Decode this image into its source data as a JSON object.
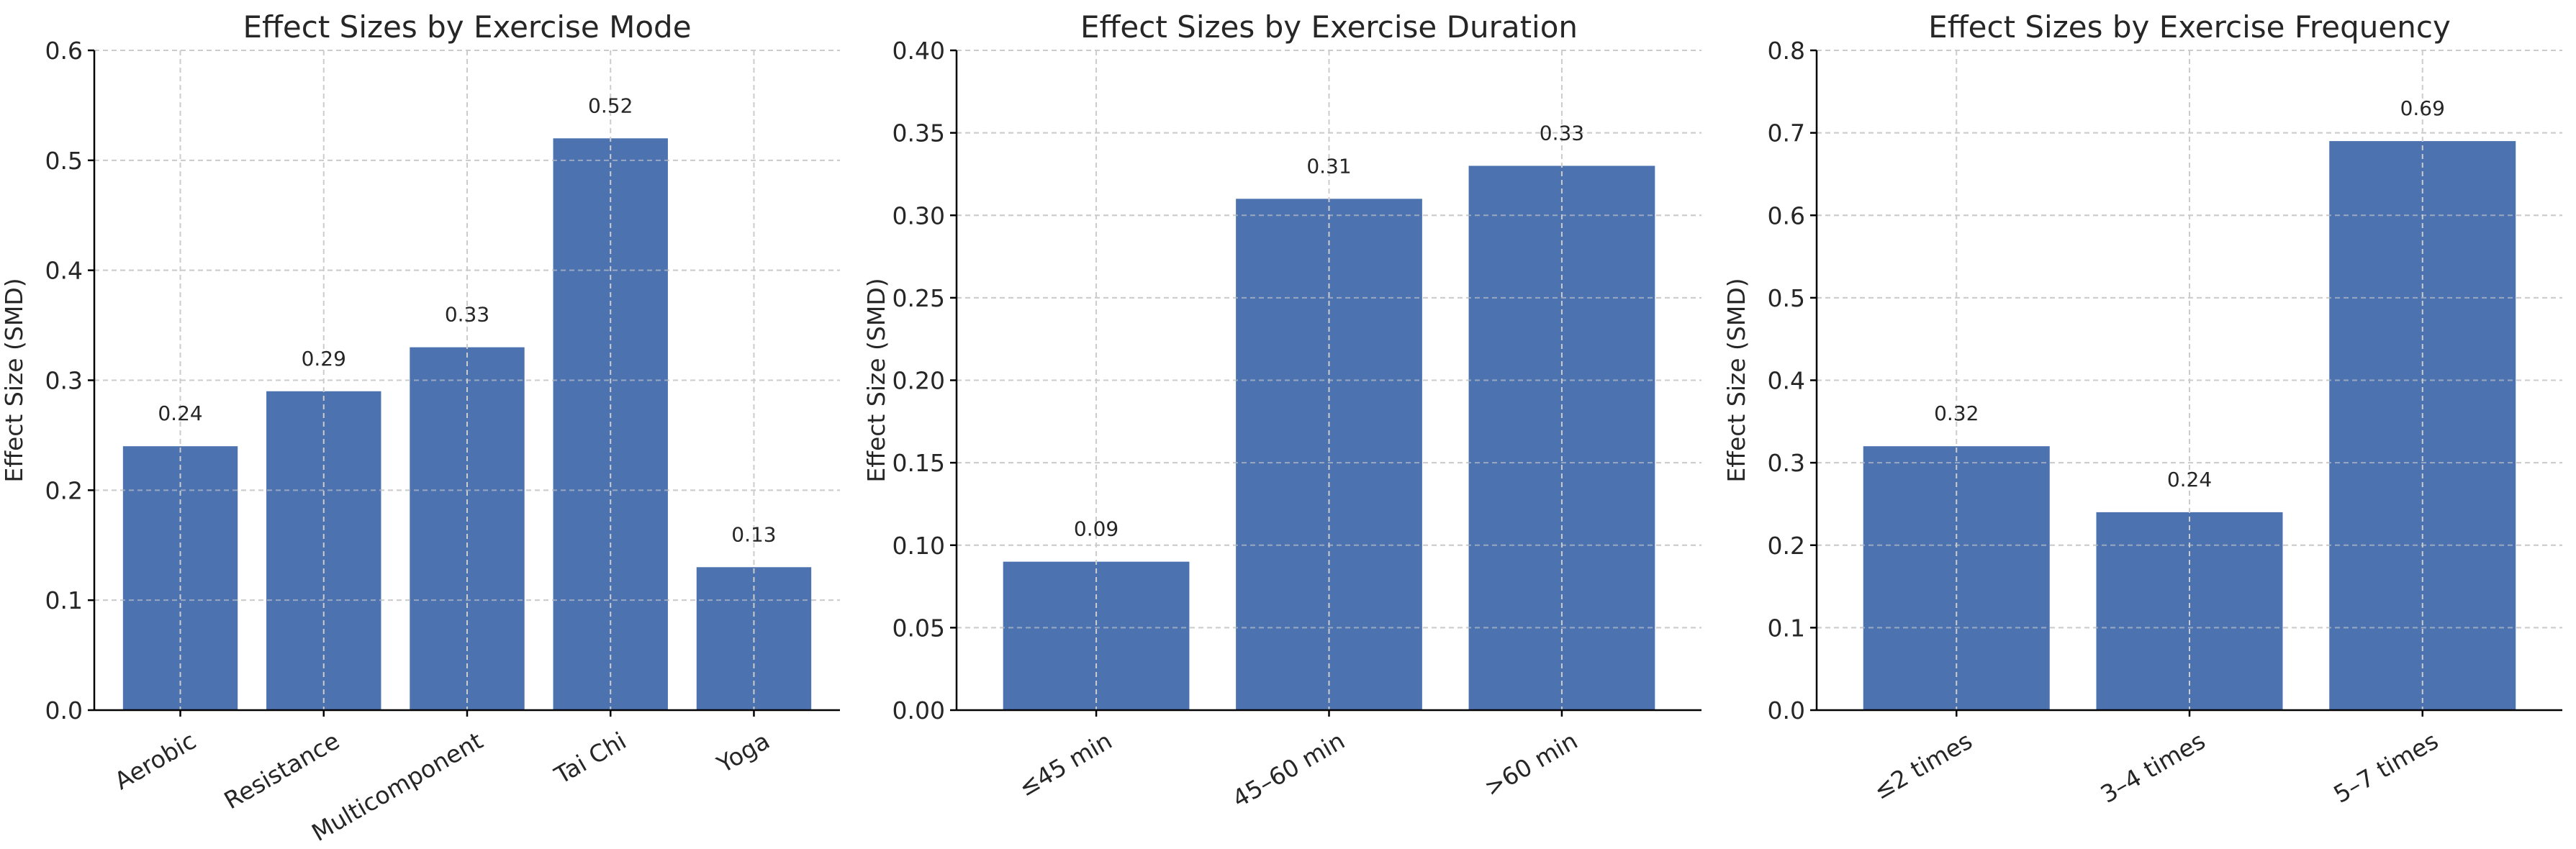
{
  "bar_color": "#4c72b0",
  "chart_data": [
    {
      "type": "bar",
      "title": "Effect Sizes by Exercise Mode",
      "xlabel": "",
      "ylabel": "Effect Size (SMD)",
      "categories": [
        "Aerobic",
        "Resistance",
        "Multicomponent",
        "Tai Chi",
        "Yoga"
      ],
      "values": [
        0.24,
        0.29,
        0.33,
        0.52,
        0.13
      ],
      "value_labels": [
        "0.24",
        "0.29",
        "0.33",
        "0.52",
        "0.13"
      ],
      "ylim": [
        0,
        0.6
      ],
      "yticks": [
        0,
        0.1,
        0.2,
        0.3,
        0.4,
        0.5,
        0.6
      ],
      "ytick_labels": [
        "0.0",
        "0.1",
        "0.2",
        "0.3",
        "0.4",
        "0.5",
        "0.6"
      ],
      "grid": true
    },
    {
      "type": "bar",
      "title": "Effect Sizes by Exercise Duration",
      "xlabel": "",
      "ylabel": "Effect Size (SMD)",
      "categories": [
        "≤45 min",
        "45–60 min",
        ">60 min"
      ],
      "values": [
        0.09,
        0.31,
        0.33
      ],
      "value_labels": [
        "0.09",
        "0.31",
        "0.33"
      ],
      "ylim": [
        0,
        0.4
      ],
      "yticks": [
        0,
        0.05,
        0.1,
        0.15,
        0.2,
        0.25,
        0.3,
        0.35,
        0.4
      ],
      "ytick_labels": [
        "0.00",
        "0.05",
        "0.10",
        "0.15",
        "0.20",
        "0.25",
        "0.30",
        "0.35",
        "0.40"
      ],
      "grid": true
    },
    {
      "type": "bar",
      "title": "Effect Sizes by Exercise Frequency",
      "xlabel": "",
      "ylabel": "Effect Size (SMD)",
      "categories": [
        "≤2 times",
        "3–4 times",
        "5–7 times"
      ],
      "values": [
        0.32,
        0.24,
        0.69
      ],
      "value_labels": [
        "0.32",
        "0.24",
        "0.69"
      ],
      "ylim": [
        0,
        0.8
      ],
      "yticks": [
        0,
        0.1,
        0.2,
        0.3,
        0.4,
        0.5,
        0.6,
        0.7,
        0.8
      ],
      "ytick_labels": [
        "0.0",
        "0.1",
        "0.2",
        "0.3",
        "0.4",
        "0.5",
        "0.6",
        "0.7",
        "0.8"
      ],
      "grid": true
    }
  ]
}
